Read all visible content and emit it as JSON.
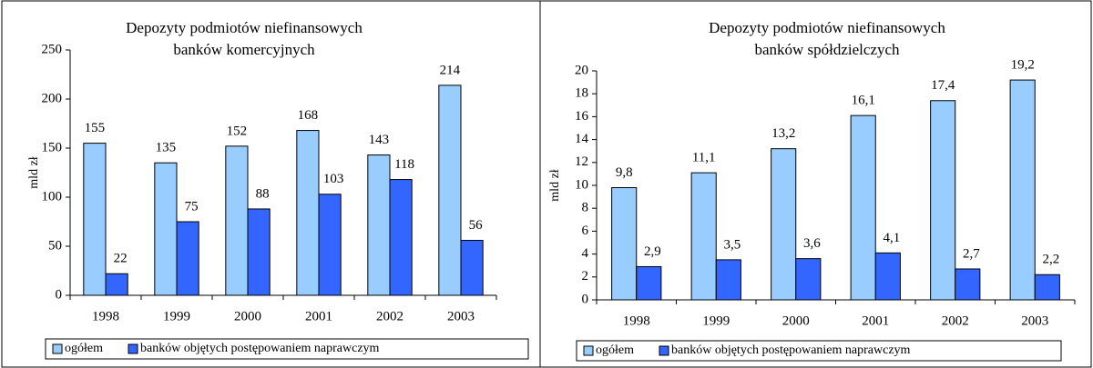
{
  "chart_data": [
    {
      "type": "bar",
      "title": [
        "Depozyty podmiotów niefinansowych",
        "banków komercyjnych"
      ],
      "ylabel": "mld zł",
      "categories": [
        "1998",
        "1999",
        "2000",
        "2001",
        "2002",
        "2003"
      ],
      "series": [
        {
          "name": "ogółem",
          "color": "#99ccff",
          "values": [
            155,
            135,
            152,
            168,
            143,
            214
          ]
        },
        {
          "name": "banków objętych postępowaniem naprawczym",
          "color": "#3366ff",
          "values": [
            22,
            75,
            88,
            103,
            118,
            56
          ]
        }
      ],
      "ylim": [
        0,
        250
      ],
      "yticks": [
        0,
        50,
        100,
        150,
        200,
        250
      ],
      "grid": false,
      "legend": "bottom"
    },
    {
      "type": "bar",
      "title": [
        "Depozyty podmiotów niefinansowych",
        "banków spółdzielczych"
      ],
      "ylabel": "mld zł",
      "categories": [
        "1998",
        "1999",
        "2000",
        "2001",
        "2002",
        "2003"
      ],
      "series": [
        {
          "name": "ogółem",
          "color": "#99ccff",
          "values": [
            9.8,
            11.1,
            13.2,
            16.1,
            17.4,
            19.2
          ],
          "value_labels": [
            "9,8",
            "11,1",
            "13,2",
            "16,1",
            "17,4",
            "19,2"
          ]
        },
        {
          "name": "banków objętych postępowaniem naprawczym",
          "color": "#3366ff",
          "values": [
            2.9,
            3.5,
            3.6,
            4.1,
            2.7,
            2.2
          ],
          "value_labels": [
            "2,9",
            "3,5",
            "3,6",
            "4,1",
            "2,7",
            "2,2"
          ]
        }
      ],
      "ylim": [
        0,
        20
      ],
      "yticks": [
        0,
        2,
        4,
        6,
        8,
        10,
        12,
        14,
        16,
        18,
        20
      ],
      "grid": false,
      "legend": "bottom"
    }
  ]
}
